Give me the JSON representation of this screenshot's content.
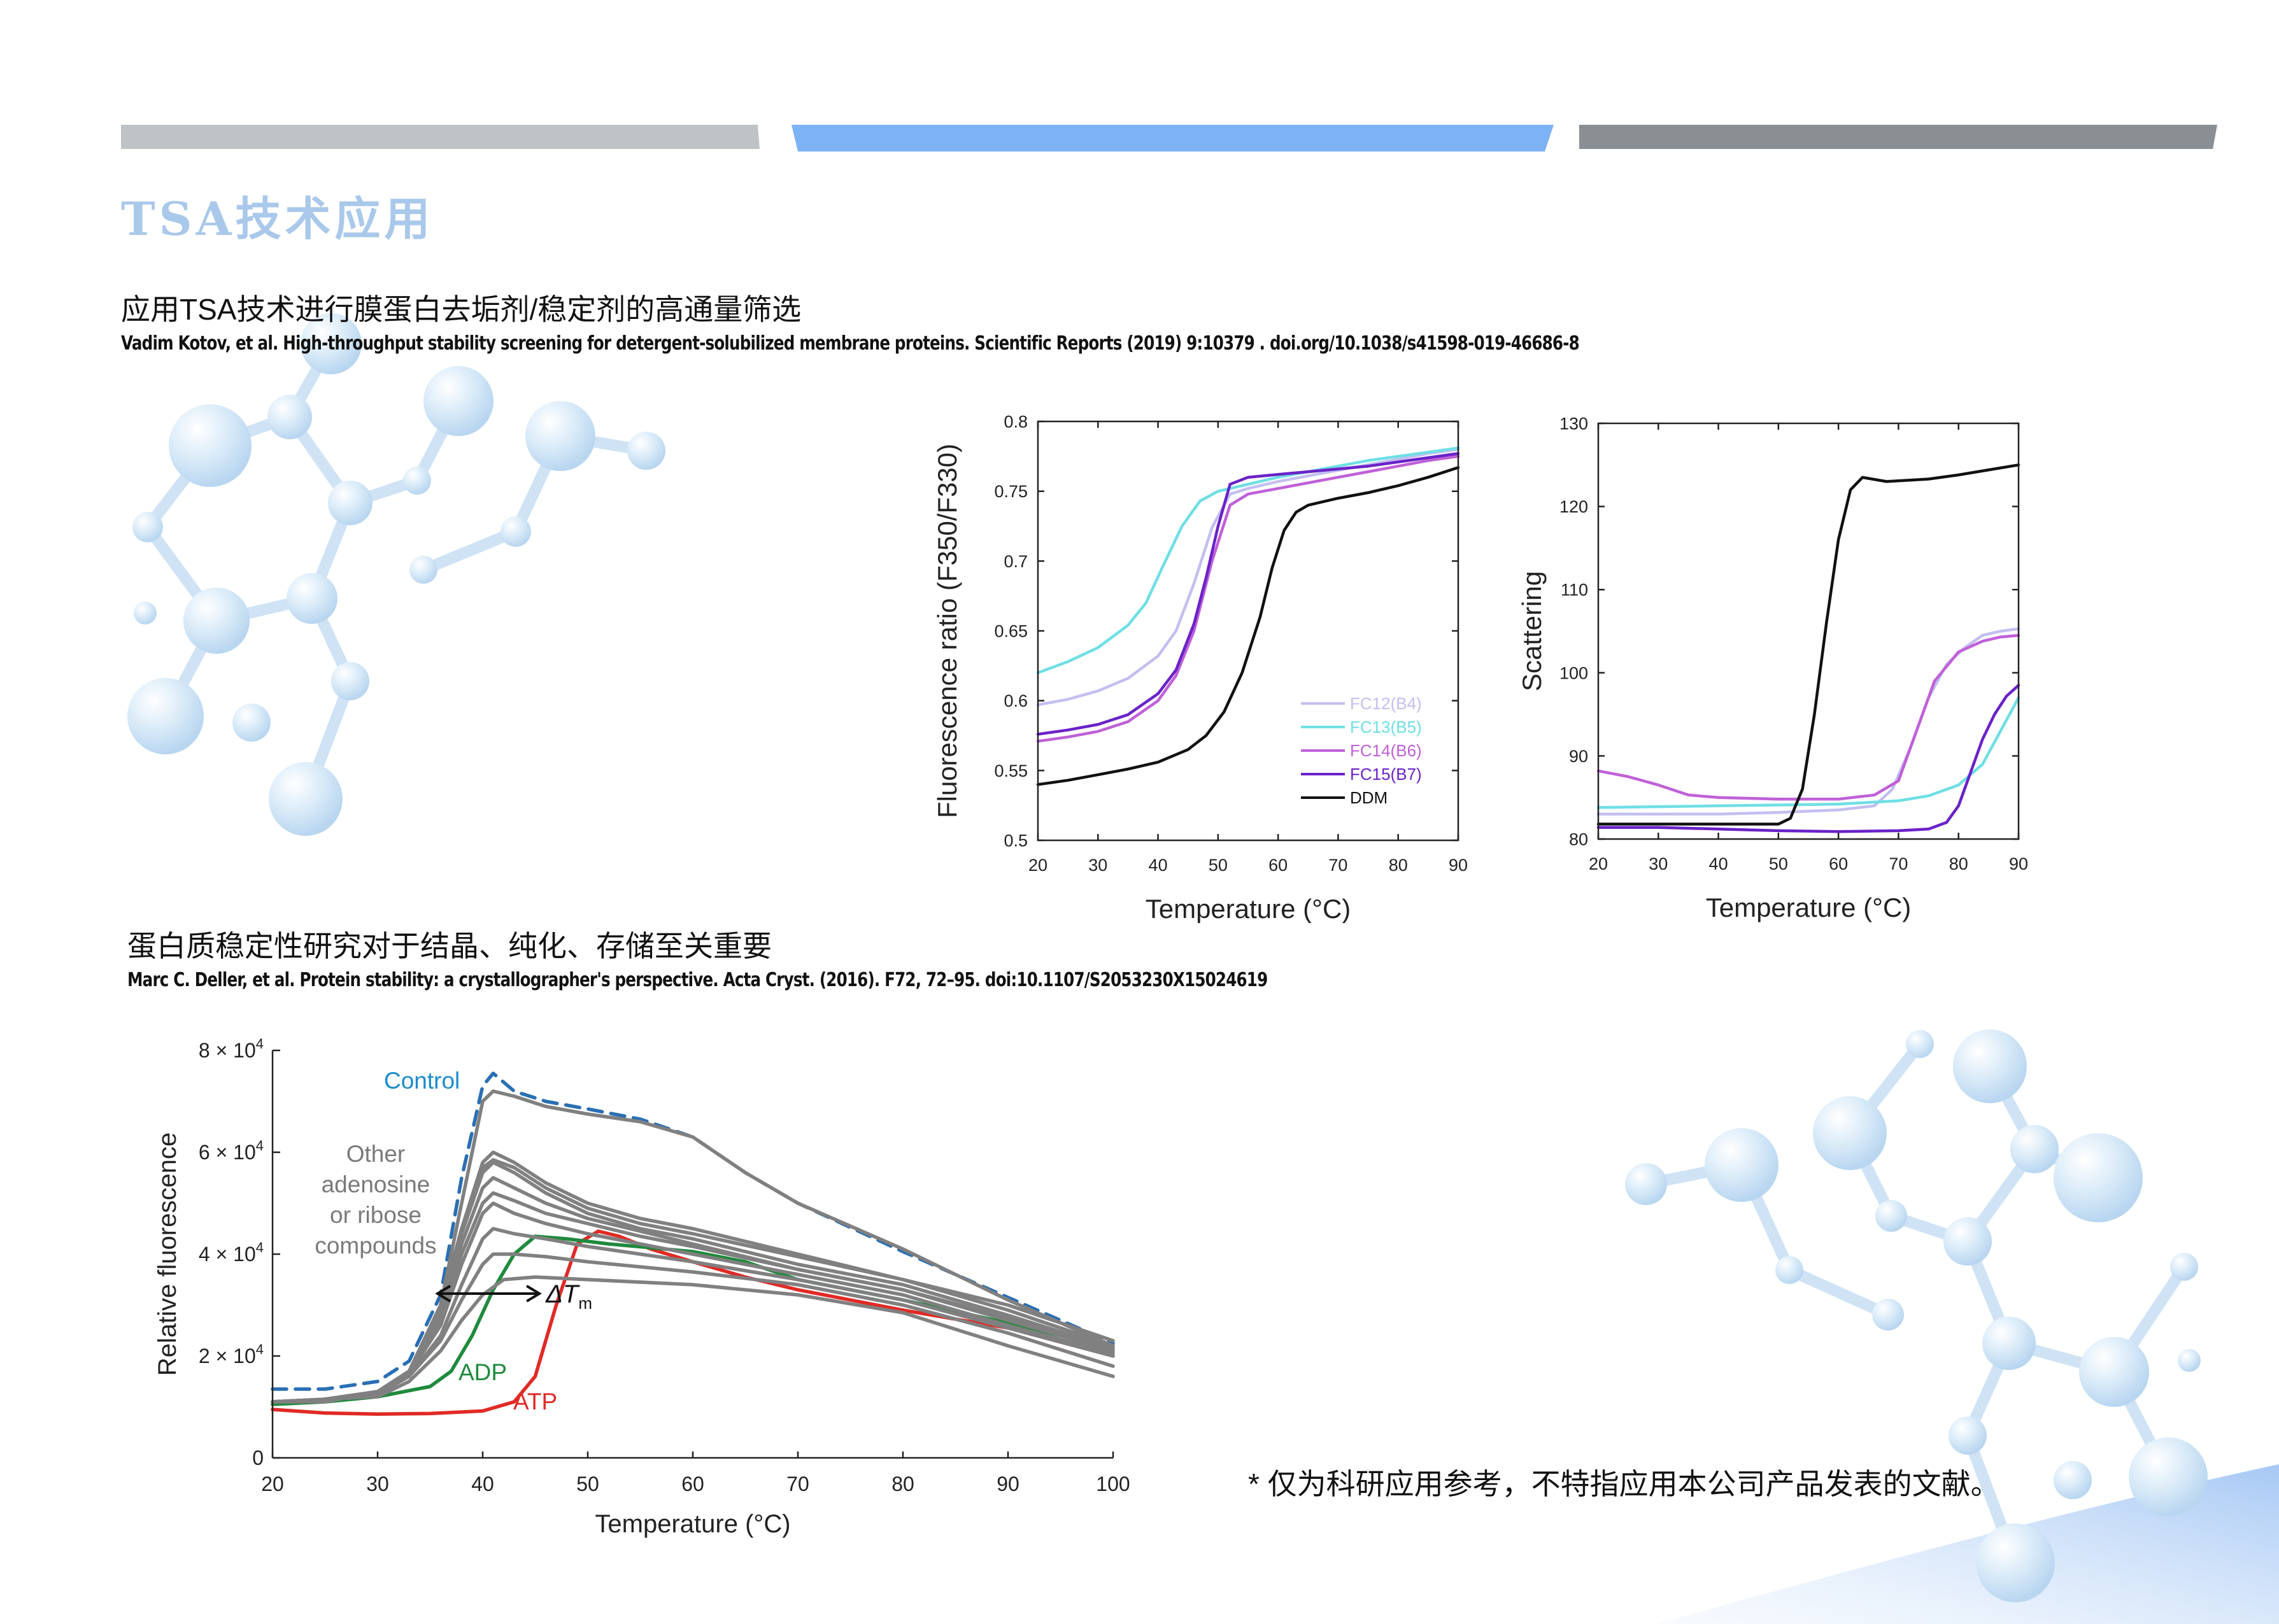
{
  "colors": {
    "bar_left": "#bfc3c6",
    "bar_mid": "#7db3f5",
    "bar_right": "#8a8f93",
    "title": "#a9c8ea",
    "molecule": "#cfe4f6"
  },
  "header": {
    "title": "TSA技术应用"
  },
  "section1": {
    "subtitle": "应用TSA技术进行膜蛋白去垢剂/稳定剂的高通量筛选",
    "citation": "Vadim Kotov, et al. High-throughput stability screening for detergent-solubilized membrane proteins. Scientific Reports (2019) 9:10379 . doi.org/10.1038/s41598-019-46686-8"
  },
  "section2": {
    "subtitle": "蛋白质稳定性研究对于结晶、纯化、存储至关重要",
    "citation": "Marc C. Deller, et al. Protein stability: a crystallographer's perspective. Acta Cryst. (2016). F72, 72–95. doi:10.1107/S2053230X15024619"
  },
  "footnote": "* 仅为科研应用参考，不特指应用本公司产品发表的文献。",
  "chart_data": [
    {
      "type": "line",
      "xlabel": "Temperature (°C)",
      "ylabel": "Fluorescence ratio (F350/F330)",
      "xlim": [
        20,
        90
      ],
      "ylim": [
        0.5,
        0.8
      ],
      "xticks": [
        "20",
        "30",
        "40",
        "50",
        "60",
        "70",
        "80",
        "90"
      ],
      "yticks": [
        "0.5",
        "0.55",
        "0.6",
        "0.65",
        "0.7",
        "0.75",
        "0.8"
      ],
      "legend_position": "bottom-right",
      "series": [
        {
          "name": "FC12(B4)",
          "color": "#c3bff0",
          "x": [
            20,
            25,
            30,
            35,
            40,
            43,
            46,
            49,
            52,
            55,
            60,
            65,
            70,
            75,
            80,
            85,
            90
          ],
          "y": [
            0.597,
            0.601,
            0.607,
            0.616,
            0.632,
            0.65,
            0.684,
            0.724,
            0.748,
            0.752,
            0.757,
            0.761,
            0.765,
            0.769,
            0.773,
            0.777,
            0.78
          ]
        },
        {
          "name": "FC13(B5)",
          "color": "#6fdfe4",
          "x": [
            20,
            25,
            30,
            35,
            38,
            41,
            44,
            47,
            50,
            55,
            60,
            65,
            70,
            75,
            80,
            85,
            90
          ],
          "y": [
            0.62,
            0.628,
            0.638,
            0.654,
            0.67,
            0.698,
            0.725,
            0.743,
            0.75,
            0.755,
            0.76,
            0.764,
            0.768,
            0.772,
            0.775,
            0.778,
            0.781
          ]
        },
        {
          "name": "FC14(B6)",
          "color": "#c060d8",
          "x": [
            20,
            25,
            30,
            35,
            40,
            43,
            46,
            49,
            52,
            55,
            60,
            65,
            70,
            75,
            80,
            85,
            90
          ],
          "y": [
            0.571,
            0.574,
            0.578,
            0.585,
            0.6,
            0.618,
            0.65,
            0.7,
            0.74,
            0.748,
            0.752,
            0.756,
            0.76,
            0.764,
            0.768,
            0.772,
            0.775
          ]
        },
        {
          "name": "FC15(B7)",
          "color": "#6a22c8",
          "x": [
            20,
            25,
            30,
            35,
            40,
            43,
            46,
            48,
            50,
            52,
            55,
            60,
            65,
            70,
            75,
            80,
            85,
            90
          ],
          "y": [
            0.576,
            0.579,
            0.583,
            0.59,
            0.605,
            0.622,
            0.655,
            0.688,
            0.725,
            0.755,
            0.76,
            0.762,
            0.764,
            0.766,
            0.768,
            0.771,
            0.774,
            0.777
          ]
        },
        {
          "name": "DDM",
          "color": "#111111",
          "x": [
            20,
            25,
            30,
            35,
            40,
            45,
            48,
            51,
            54,
            57,
            59,
            61,
            63,
            65,
            70,
            75,
            80,
            85,
            90
          ],
          "y": [
            0.54,
            0.543,
            0.547,
            0.551,
            0.556,
            0.565,
            0.575,
            0.592,
            0.62,
            0.66,
            0.695,
            0.722,
            0.735,
            0.74,
            0.745,
            0.749,
            0.754,
            0.76,
            0.767
          ]
        }
      ]
    },
    {
      "type": "line",
      "xlabel": "Temperature (°C)",
      "ylabel": "Scattering",
      "xlim": [
        20,
        90
      ],
      "ylim": [
        80,
        130
      ],
      "xticks": [
        "20",
        "30",
        "40",
        "50",
        "60",
        "70",
        "80",
        "90"
      ],
      "yticks": [
        "80",
        "90",
        "100",
        "110",
        "120",
        "130"
      ],
      "series": [
        {
          "color": "#c3bff0",
          "x": [
            20,
            30,
            40,
            50,
            60,
            66,
            69,
            72,
            75,
            78,
            81,
            84,
            87,
            90
          ],
          "y": [
            83.0,
            83.0,
            83.0,
            83.2,
            83.5,
            84.0,
            86.0,
            91.0,
            97.0,
            101.0,
            103.0,
            104.5,
            105.0,
            105.3
          ]
        },
        {
          "color": "#6fdfe4",
          "x": [
            20,
            30,
            40,
            50,
            60,
            70,
            75,
            80,
            84,
            87,
            90
          ],
          "y": [
            83.8,
            83.9,
            84.0,
            84.1,
            84.2,
            84.6,
            85.2,
            86.5,
            89.0,
            93.0,
            97.0
          ]
        },
        {
          "color": "#c060d8",
          "x": [
            20,
            25,
            30,
            35,
            40,
            50,
            60,
            66,
            70,
            73,
            76,
            80,
            84,
            87,
            90
          ],
          "y": [
            88.2,
            87.5,
            86.5,
            85.3,
            85.0,
            84.8,
            84.8,
            85.3,
            87.0,
            93.0,
            99.0,
            102.5,
            103.8,
            104.3,
            104.5
          ]
        },
        {
          "color": "#6a22c8",
          "x": [
            20,
            30,
            40,
            50,
            60,
            70,
            75,
            78,
            80,
            82,
            84,
            86,
            88,
            90
          ],
          "y": [
            81.4,
            81.4,
            81.2,
            81.0,
            80.9,
            81.0,
            81.2,
            82.0,
            84.0,
            88.0,
            92.0,
            95.0,
            97.2,
            98.5
          ]
        },
        {
          "color": "#111111",
          "x": [
            20,
            30,
            40,
            50,
            52,
            54,
            56,
            58,
            60,
            62,
            64,
            68,
            75,
            80,
            85,
            90
          ],
          "y": [
            81.8,
            81.8,
            81.8,
            81.8,
            82.5,
            86.0,
            95.0,
            106.0,
            116.0,
            122.0,
            123.5,
            123.0,
            123.3,
            123.8,
            124.4,
            125.0
          ]
        }
      ]
    },
    {
      "type": "line",
      "xlabel": "Temperature (°C)",
      "ylabel": "Relative fluorescence",
      "xlim": [
        20,
        100
      ],
      "ylim": [
        0,
        80000
      ],
      "xticks": [
        "20",
        "30",
        "40",
        "50",
        "60",
        "70",
        "80",
        "90",
        "100"
      ],
      "yticks_mantissa": [
        "0",
        "2",
        "4",
        "6",
        "8"
      ],
      "ytick_exponent_text": "× 10",
      "ytick_exponent": "4",
      "annotations": {
        "control": "Control",
        "other": [
          "Other",
          "adenosine",
          "or ribose",
          "compounds"
        ],
        "adp": "ADP",
        "atp": "ATP",
        "delta": "ΔT",
        "delta_sub": "m"
      },
      "series": [
        {
          "name": "Control",
          "style": "dashed",
          "color": "#2a6fb3",
          "x": [
            20,
            25,
            30,
            33,
            36,
            38,
            40,
            41,
            43,
            46,
            50,
            55,
            60,
            65,
            70,
            80,
            90,
            95,
            100
          ],
          "y": [
            13500,
            13500,
            15000,
            19000,
            32000,
            55000,
            73000,
            75500,
            72000,
            70000,
            68500,
            66500,
            63000,
            56000,
            50000,
            40500,
            31500,
            27000,
            22500
          ]
        },
        {
          "name": "ATP",
          "color": "#e02a26",
          "x": [
            20,
            25,
            30,
            35,
            40,
            43,
            45,
            47,
            49,
            51,
            53,
            56,
            60,
            65,
            70,
            80,
            90,
            100
          ],
          "y": [
            9500,
            8800,
            8600,
            8700,
            9200,
            11000,
            16000,
            30000,
            42000,
            44500,
            43500,
            41000,
            38500,
            35500,
            33000,
            29000,
            25500,
            20000
          ]
        },
        {
          "name": "ADP",
          "color": "#1f8a3c",
          "x": [
            20,
            25,
            30,
            35,
            37,
            39,
            41,
            43,
            45,
            48,
            52,
            60,
            65,
            70,
            80,
            90,
            100
          ],
          "y": [
            10500,
            11000,
            12000,
            14000,
            17000,
            24000,
            33000,
            40000,
            43500,
            43000,
            42000,
            40500,
            38500,
            35000,
            31000,
            26500,
            21500
          ]
        },
        {
          "name": "Other",
          "color": "#808080",
          "x": [
            20,
            25,
            30,
            33,
            36,
            38,
            40,
            41,
            43,
            46,
            50,
            55,
            60,
            65,
            70,
            80,
            90,
            100
          ],
          "y": [
            11000,
            11000,
            13000,
            17000,
            30000,
            50000,
            70000,
            72000,
            71000,
            69000,
            67500,
            66000,
            63000,
            56000,
            50000,
            41000,
            31000,
            22000
          ]
        },
        {
          "name": "Other",
          "color": "#808080",
          "x": [
            20,
            25,
            30,
            33,
            36,
            38,
            40,
            41,
            43,
            46,
            50,
            55,
            60,
            70,
            80,
            90,
            100
          ],
          "y": [
            11000,
            11500,
            13000,
            17000,
            30000,
            45000,
            58000,
            60000,
            58000,
            54000,
            50000,
            47000,
            45000,
            40000,
            35000,
            29000,
            22000
          ]
        },
        {
          "name": "Other",
          "color": "#808080",
          "x": [
            20,
            25,
            30,
            33,
            36,
            38,
            40,
            41,
            43,
            46,
            50,
            55,
            60,
            70,
            80,
            90,
            100
          ],
          "y": [
            11000,
            11500,
            13000,
            17000,
            29000,
            44000,
            56000,
            58000,
            56000,
            52000,
            48000,
            45000,
            43000,
            38000,
            34000,
            28000,
            21500
          ]
        },
        {
          "name": "Other",
          "color": "#808080",
          "x": [
            20,
            25,
            30,
            33,
            36,
            38,
            40,
            41,
            43,
            46,
            50,
            55,
            60,
            70,
            80,
            90,
            100
          ],
          "y": [
            11000,
            11500,
            13000,
            17000,
            28000,
            42000,
            53000,
            55000,
            53000,
            50000,
            47000,
            44500,
            42000,
            37000,
            33000,
            27000,
            21000
          ]
        },
        {
          "name": "Other",
          "color": "#808080",
          "x": [
            20,
            25,
            30,
            33,
            36,
            38,
            40,
            41,
            43,
            46,
            50,
            55,
            60,
            70,
            80,
            90,
            100
          ],
          "y": [
            11000,
            11500,
            13000,
            16500,
            26000,
            38000,
            48000,
            50000,
            48000,
            46000,
            44000,
            42000,
            40000,
            36000,
            32000,
            26000,
            20500
          ]
        },
        {
          "name": "Other",
          "color": "#808080",
          "x": [
            20,
            25,
            30,
            33,
            36,
            38,
            40,
            41,
            43,
            46,
            50,
            55,
            60,
            70,
            80,
            90,
            100
          ],
          "y": [
            11000,
            11500,
            12500,
            16000,
            24000,
            34000,
            43000,
            45000,
            44000,
            43000,
            41500,
            40000,
            38500,
            35000,
            31000,
            25500,
            20000
          ]
        },
        {
          "name": "Other",
          "color": "#808080",
          "x": [
            20,
            25,
            30,
            33,
            36,
            38,
            40,
            41,
            43,
            46,
            50,
            55,
            60,
            70,
            80,
            90,
            100
          ],
          "y": [
            11000,
            11500,
            12500,
            16000,
            23000,
            31000,
            38000,
            40000,
            40000,
            39500,
            38500,
            37500,
            36500,
            34000,
            30000,
            24500,
            18000
          ]
        },
        {
          "name": "Other",
          "color": "#808080",
          "x": [
            20,
            25,
            30,
            33,
            36,
            38,
            40,
            42,
            45,
            50,
            55,
            60,
            70,
            80,
            90,
            100
          ],
          "y": [
            11000,
            11500,
            12000,
            15000,
            21000,
            27000,
            32000,
            35000,
            35500,
            35000,
            34500,
            34000,
            32000,
            28500,
            22000,
            16000
          ]
        },
        {
          "name": "Other",
          "color": "#808080",
          "x": [
            20,
            25,
            30,
            33,
            36,
            38,
            40,
            41,
            43,
            46,
            50,
            55,
            60,
            70,
            80,
            90,
            100
          ],
          "y": [
            11000,
            11500,
            13000,
            17000,
            29000,
            45000,
            57000,
            58500,
            57000,
            53000,
            49000,
            46000,
            44000,
            39500,
            35000,
            30000,
            23000
          ]
        },
        {
          "name": "Other",
          "color": "#808080",
          "x": [
            20,
            25,
            30,
            33,
            36,
            38,
            40,
            41,
            43,
            46,
            50,
            55,
            60,
            70,
            80,
            90,
            100
          ],
          "y": [
            11000,
            11500,
            13000,
            17000,
            27000,
            40000,
            50000,
            52000,
            50500,
            48000,
            46000,
            43500,
            41500,
            37000,
            33000,
            27500,
            21000
          ]
        }
      ]
    }
  ]
}
